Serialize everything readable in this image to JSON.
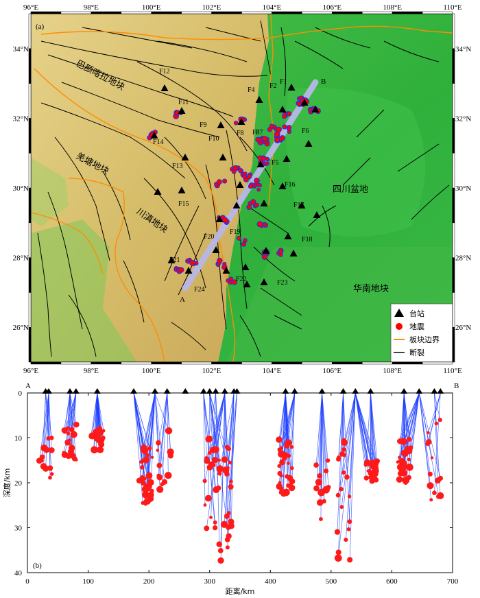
{
  "map": {
    "panel_label": "(a)",
    "lon_ticks": [
      "96°E",
      "98°E",
      "100°E",
      "102°E",
      "104°E",
      "106°E",
      "108°E",
      "110°E"
    ],
    "lat_ticks": [
      "26°N",
      "28°N",
      "30°N",
      "32°N",
      "34°N"
    ],
    "profile_start": "A",
    "profile_end": "B",
    "blocks": {
      "bayan_har": "巴颜喀拉地块",
      "qiangtang": "羌塘地块",
      "chuandian": "川滇地块",
      "sichuan_basin": "四川盆地",
      "south_china": "华南地块"
    },
    "faults": [
      "F1",
      "F2",
      "F3",
      "F4",
      "F5",
      "F6",
      "F7",
      "F8",
      "F9",
      "F10",
      "F11",
      "F12",
      "F13",
      "F14",
      "F15",
      "F16",
      "F17",
      "F18",
      "F19",
      "F20",
      "F21",
      "F22",
      "F23",
      "F24"
    ],
    "legend": {
      "station": "台站",
      "earthquake": "地震",
      "plate_boundary": "板块边界",
      "fault": "断裂"
    },
    "colors": {
      "station": "#000000",
      "earthquake": "#ff0000",
      "plate_boundary": "#ff8c00",
      "fault": "#000000",
      "profile": "#b8b8e8",
      "plateau": "#d8c070",
      "lowland": "#34b23a"
    }
  },
  "section": {
    "panel_label": "(b)",
    "xlabel": "距离/km",
    "ylabel": "深度/km",
    "x_ticks": [
      "0",
      "100",
      "200",
      "300",
      "400",
      "500",
      "600",
      "700"
    ],
    "y_ticks": [
      "0",
      "10",
      "20",
      "30",
      "40"
    ],
    "end_a": "A",
    "end_b": "B",
    "xlim": [
      0,
      700
    ],
    "ylim": [
      0,
      40
    ]
  },
  "chart_data": {
    "type": "scatter",
    "xlabel": "距离/km",
    "ylabel": "深度/km",
    "xlim": [
      0,
      700
    ],
    "ylim": [
      0,
      40
    ],
    "stations_x_km": [
      30,
      35,
      70,
      80,
      115,
      175,
      210,
      230,
      260,
      290,
      300,
      310,
      325,
      340,
      345,
      425,
      440,
      485,
      520,
      540,
      565,
      620,
      645,
      670,
      680
    ],
    "earthquake_clusters": [
      {
        "x": 30,
        "depth_min": 10,
        "depth_max": 19
      },
      {
        "x": 70,
        "depth_min": 7,
        "depth_max": 15
      },
      {
        "x": 115,
        "depth_min": 8,
        "depth_max": 13
      },
      {
        "x": 195,
        "depth_min": 12,
        "depth_max": 25
      },
      {
        "x": 225,
        "depth_min": 8,
        "depth_max": 22
      },
      {
        "x": 300,
        "depth_min": 10,
        "depth_max": 35
      },
      {
        "x": 325,
        "depth_min": 12,
        "depth_max": 39
      },
      {
        "x": 425,
        "depth_min": 10,
        "depth_max": 23
      },
      {
        "x": 485,
        "depth_min": 15,
        "depth_max": 33
      },
      {
        "x": 520,
        "depth_min": 10,
        "depth_max": 39
      },
      {
        "x": 565,
        "depth_min": 15,
        "depth_max": 20
      },
      {
        "x": 620,
        "depth_min": 10,
        "depth_max": 20
      },
      {
        "x": 670,
        "depth_min": 5,
        "depth_max": 25
      }
    ]
  }
}
